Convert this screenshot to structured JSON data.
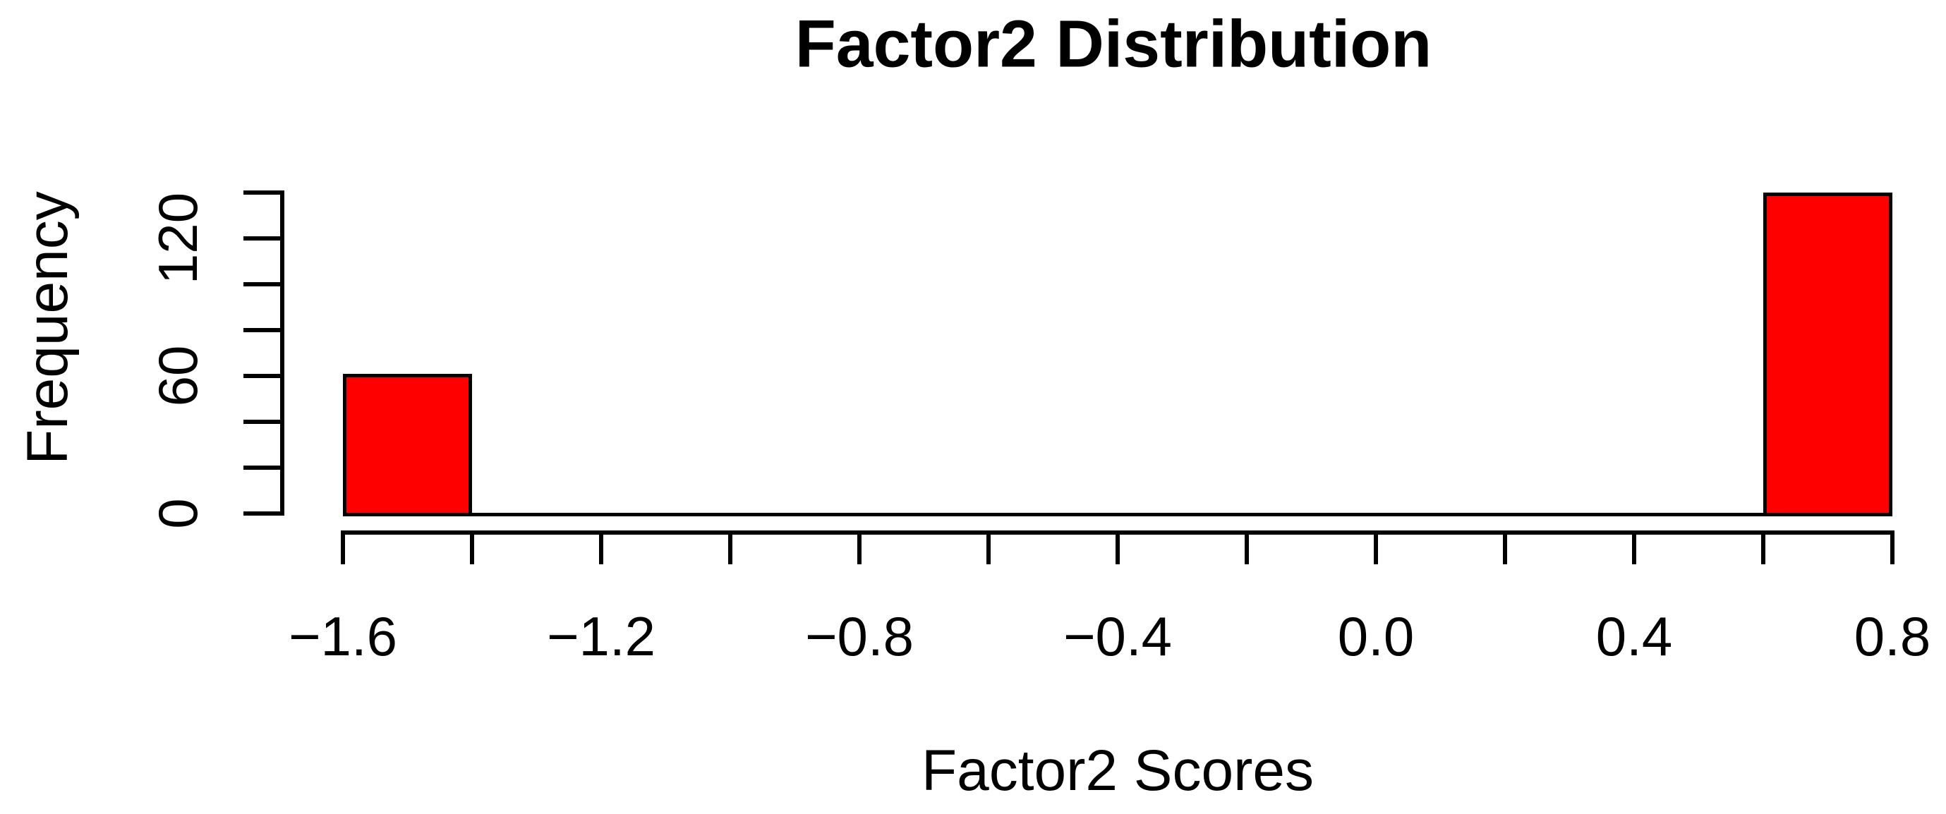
{
  "chart_data": {
    "type": "bar",
    "subtype": "histogram",
    "title": "Factor2 Distribution",
    "xlabel": "Factor2 Scores",
    "ylabel": "Frequency",
    "xlim": [
      -1.6,
      0.8
    ],
    "ylim": [
      0,
      140
    ],
    "bin_width": 0.2,
    "bin_edges": [
      -1.6,
      -1.4,
      -1.2,
      -1.0,
      -0.8,
      -0.6,
      -0.4,
      -0.2,
      0.0,
      0.2,
      0.4,
      0.6,
      0.8
    ],
    "counts": [
      61,
      0,
      0,
      0,
      0,
      0,
      0,
      0,
      0,
      0,
      0,
      140
    ],
    "x_ticks": [
      -1.6,
      -1.4,
      -1.2,
      -1.0,
      -0.8,
      -0.6,
      -0.4,
      -0.2,
      0.0,
      0.2,
      0.4,
      0.6,
      0.8
    ],
    "x_labeled_ticks": [
      -1.6,
      -1.2,
      -0.8,
      -0.4,
      0.0,
      0.4,
      0.8
    ],
    "x_tick_labels": [
      "−1.6",
      "−1.2",
      "−0.8",
      "−0.4",
      "0.0",
      "0.4",
      "0.8"
    ],
    "y_ticks": [
      0,
      20,
      40,
      60,
      80,
      100,
      120,
      140
    ],
    "y_labeled_ticks": [
      0,
      60,
      120
    ],
    "y_tick_labels": [
      "0",
      "60",
      "120"
    ],
    "grid": false,
    "legend": false,
    "colors": {
      "bar_fill": "#FF0000",
      "bar_border": "#000000",
      "axis": "#000000",
      "text": "#000000",
      "background": "#FFFFFF"
    }
  }
}
